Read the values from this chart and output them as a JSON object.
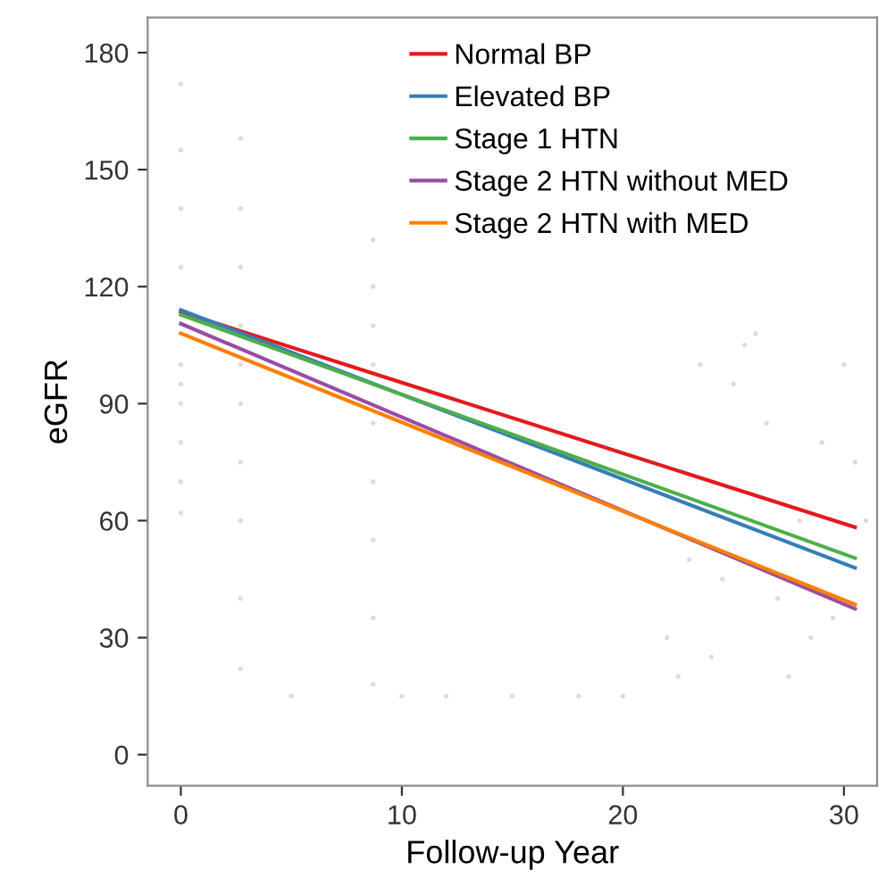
{
  "chart_data": {
    "type": "line",
    "xlabel": "Follow-up Year",
    "ylabel": "eGFR",
    "xlim": [
      -1.5,
      31.5
    ],
    "ylim": [
      -8,
      189
    ],
    "xticks": [
      0,
      10,
      20,
      30
    ],
    "yticks": [
      0,
      30,
      60,
      90,
      120,
      150,
      180
    ],
    "grid": false,
    "legend": "top",
    "marker": "none",
    "line_style": "solid",
    "series": [
      {
        "type": "scatter",
        "color": "#dcdcdc",
        "x": [
          0,
          0,
          0,
          0,
          0,
          0,
          0,
          0,
          0,
          0,
          2.7,
          2.7,
          2.7,
          2.7,
          2.7,
          2.7,
          2.7,
          2.7,
          2.7,
          2.7,
          8.7,
          8.7,
          8.7,
          8.7,
          8.7,
          8.7,
          8.7,
          8.7,
          8.7,
          22,
          23,
          24,
          25,
          26,
          27,
          28,
          29,
          30,
          31,
          22.5,
          24.5,
          26.5,
          28.5,
          30.5,
          23.5,
          25.5,
          27.5,
          29.5,
          5,
          10,
          15,
          20,
          12,
          18
        ],
        "values": [
          62,
          70,
          80,
          90,
          100,
          95,
          125,
          140,
          155,
          172,
          22,
          40,
          60,
          75,
          90,
          100,
          110,
          125,
          140,
          158,
          18,
          35,
          55,
          70,
          85,
          100,
          110,
          120,
          132,
          30,
          50,
          25,
          95,
          108,
          40,
          60,
          80,
          100,
          60,
          20,
          45,
          85,
          30,
          75,
          100,
          105,
          20,
          35,
          15,
          15,
          15,
          15,
          15,
          15
        ]
      },
      {
        "name": "Normal BP",
        "color": "#e41a1c",
        "x": [
          0,
          30.5
        ],
        "values": [
          113.5,
          58.3
        ]
      },
      {
        "name": "Elevated BP",
        "color": "#377eb8",
        "x": [
          0,
          30.5
        ],
        "values": [
          114,
          47.9
        ]
      },
      {
        "name": "Stage 1 HTN",
        "color": "#4daf4a",
        "x": [
          0,
          30.5
        ],
        "values": [
          112.8,
          50.4
        ]
      },
      {
        "name": "Stage 2 HTN without MED",
        "color": "#984ea3",
        "x": [
          0,
          30.5
        ],
        "values": [
          110.5,
          37.4
        ]
      },
      {
        "name": "Stage 2 HTN with MED",
        "color": "#ff7f00",
        "x": [
          0,
          30.5
        ],
        "values": [
          108,
          38.5
        ]
      }
    ]
  }
}
